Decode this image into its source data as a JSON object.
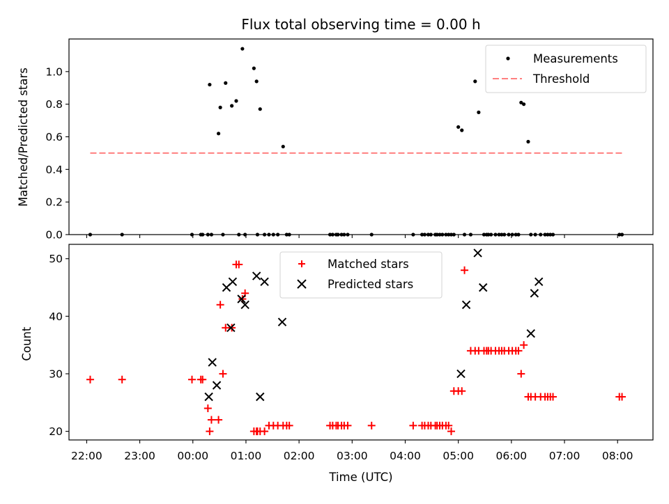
{
  "chart_data": [
    {
      "type": "scatter",
      "title": "Flux total observing time = 0.00 h",
      "ylabel": "Matched/Predicted stars",
      "xlabel": "",
      "x_range": [
        "21:40",
        "08:40"
      ],
      "ylim": [
        0,
        1.2
      ],
      "y_ticks": [
        "0.0",
        "0.2",
        "0.4",
        "0.6",
        "0.8",
        "1.0"
      ],
      "legend_position": "upper right",
      "grid": false,
      "series": [
        {
          "name": "Measurements",
          "color": "#000000",
          "marker": "dot",
          "x": [
            "22:04",
            "22:40",
            "23:59",
            "00:09",
            "00:11",
            "00:17",
            "00:19",
            "00:21",
            "00:29",
            "00:31",
            "00:34",
            "00:37",
            "00:44",
            "00:49",
            "00:52",
            "00:56",
            "00:59",
            "01:09",
            "01:12",
            "01:13",
            "01:16",
            "01:21",
            "01:26",
            "01:31",
            "01:36",
            "01:42",
            "01:46",
            "01:49",
            "02:35",
            "02:38",
            "02:42",
            "02:44",
            "02:48",
            "02:51",
            "02:55",
            "03:22",
            "04:09",
            "04:19",
            "04:22",
            "04:26",
            "04:29",
            "04:34",
            "04:36",
            "04:39",
            "04:42",
            "04:46",
            "04:49",
            "04:52",
            "04:55",
            "05:00",
            "05:04",
            "05:07",
            "05:14",
            "05:19",
            "05:23",
            "05:29",
            "05:32",
            "05:34",
            "05:37",
            "05:42",
            "05:46",
            "05:49",
            "05:52",
            "05:57",
            "06:01",
            "06:05",
            "06:08",
            "06:11",
            "06:14",
            "06:19",
            "06:22",
            "06:27",
            "06:33",
            "06:38",
            "06:41",
            "06:44",
            "06:47",
            "08:02",
            "08:05"
          ],
          "y": [
            0,
            0,
            0,
            0,
            0,
            0,
            0.92,
            0,
            0.62,
            0.78,
            0,
            0.93,
            0.79,
            0.82,
            0,
            1.14,
            0,
            1.02,
            0.94,
            0,
            0.77,
            0,
            0,
            0,
            0,
            0.54,
            0,
            0,
            0,
            0,
            0,
            0,
            0,
            0,
            0,
            0,
            0,
            0,
            0,
            0,
            0,
            0,
            0,
            0,
            0,
            0,
            0,
            0,
            0,
            0.66,
            0.64,
            0,
            0,
            0.94,
            0.75,
            0,
            0,
            0,
            0,
            0,
            0,
            0,
            0,
            0,
            0,
            0,
            0,
            0.81,
            0.8,
            0.57,
            0,
            0,
            0,
            0,
            0,
            0,
            0,
            0,
            0
          ]
        },
        {
          "name": "Threshold",
          "color": "#ff7f7f",
          "style": "dashed",
          "x": [
            "22:04",
            "08:08"
          ],
          "y": [
            0.5,
            0.5
          ]
        }
      ]
    },
    {
      "type": "scatter",
      "title": "",
      "xlabel": "Time (UTC)",
      "ylabel": "Count",
      "x_ticks": [
        "22:00",
        "23:00",
        "00:00",
        "01:00",
        "02:00",
        "03:00",
        "04:00",
        "05:00",
        "06:00",
        "07:00",
        "08:00"
      ],
      "x_range": [
        "21:40",
        "08:40"
      ],
      "ylim": [
        18.5,
        52.5
      ],
      "y_ticks": [
        "20",
        "30",
        "40",
        "50"
      ],
      "legend_position": "upper center",
      "grid": false,
      "series": [
        {
          "name": "Matched stars",
          "color": "#ff0000",
          "marker": "plus",
          "x": [
            "22:04",
            "22:40",
            "23:59",
            "00:09",
            "00:11",
            "00:17",
            "00:19",
            "00:21",
            "00:29",
            "00:31",
            "00:34",
            "00:37",
            "00:44",
            "00:49",
            "00:52",
            "00:56",
            "00:59",
            "01:09",
            "01:12",
            "01:13",
            "01:16",
            "01:21",
            "01:26",
            "01:31",
            "01:36",
            "01:42",
            "01:46",
            "01:49",
            "02:35",
            "02:38",
            "02:42",
            "02:44",
            "02:48",
            "02:51",
            "02:55",
            "03:22",
            "04:09",
            "04:19",
            "04:22",
            "04:26",
            "04:29",
            "04:34",
            "04:36",
            "04:39",
            "04:42",
            "04:46",
            "04:49",
            "04:52",
            "04:55",
            "05:00",
            "05:04",
            "05:07",
            "05:14",
            "05:19",
            "05:23",
            "05:29",
            "05:32",
            "05:34",
            "05:37",
            "05:42",
            "05:46",
            "05:49",
            "05:52",
            "05:57",
            "06:01",
            "06:05",
            "06:08",
            "06:11",
            "06:14",
            "06:19",
            "06:22",
            "06:27",
            "06:33",
            "06:38",
            "06:41",
            "06:44",
            "06:47",
            "08:02",
            "08:05"
          ],
          "y": [
            29,
            29,
            29,
            29,
            29,
            24,
            20,
            22,
            22,
            42,
            30,
            38,
            38,
            49,
            49,
            43,
            44,
            20,
            20,
            20,
            20,
            20,
            21,
            21,
            21,
            21,
            21,
            21,
            21,
            21,
            21,
            21,
            21,
            21,
            21,
            21,
            21,
            21,
            21,
            21,
            21,
            21,
            21,
            21,
            21,
            21,
            21,
            20,
            27,
            27,
            27,
            48,
            34,
            34,
            34,
            34,
            34,
            34,
            34,
            34,
            34,
            34,
            34,
            34,
            34,
            34,
            34,
            30,
            35,
            26,
            26,
            26,
            26,
            26,
            26,
            26,
            26,
            26,
            26
          ]
        },
        {
          "name": "Predicted stars",
          "color": "#000000",
          "marker": "x",
          "x": [
            "00:18",
            "00:22",
            "00:27",
            "00:38",
            "00:43",
            "00:45",
            "00:55",
            "00:59",
            "01:12",
            "01:16",
            "01:21",
            "01:41",
            "05:03",
            "05:09",
            "05:22",
            "05:28",
            "06:22",
            "06:26",
            "06:31"
          ],
          "y": [
            26,
            32,
            28,
            45,
            38,
            46,
            43,
            42,
            47,
            26,
            46,
            39,
            30,
            42,
            51,
            45,
            37,
            44,
            46
          ]
        }
      ]
    }
  ]
}
